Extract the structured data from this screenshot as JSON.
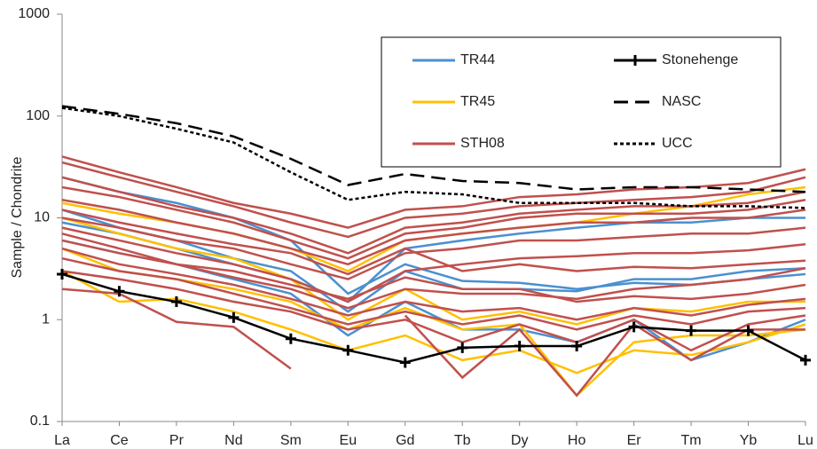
{
  "chart_data": {
    "type": "line",
    "y_label": "Sample / Chondrite",
    "y_scale": "log",
    "categories": [
      "La",
      "Ce",
      "Pr",
      "Nd",
      "Sm",
      "Eu",
      "Gd",
      "Tb",
      "Dy",
      "Ho",
      "Er",
      "Tm",
      "Yb",
      "Lu"
    ],
    "ylim": [
      0.1,
      1000
    ],
    "yticks": [
      0.1,
      1,
      10,
      100,
      1000
    ],
    "series": [
      {
        "name": "TR44",
        "color": "#4a90d0",
        "dash": "solid",
        "lines": [
          [
            25,
            18,
            14,
            10,
            6,
            1.8,
            3.5,
            2.4,
            2.3,
            2,
            2.3,
            2.2,
            2.5,
            2.8
          ],
          [
            12,
            8,
            6,
            4,
            3,
            1.2,
            3,
            2,
            2,
            1.9,
            2.5,
            2.5,
            3,
            3.2
          ],
          [
            9,
            7,
            5,
            3.5,
            2.5,
            1.5,
            5,
            6,
            7,
            8,
            9,
            9,
            10,
            10
          ],
          [
            6,
            4.5,
            3.5,
            2.5,
            1.8,
            0.7,
            1.5,
            0.8,
            0.8,
            0.6,
            1,
            0.4,
            0.6,
            1
          ]
        ]
      },
      {
        "name": "TR45",
        "color": "#ffc000",
        "dash": "solid",
        "lines": [
          [
            14,
            11,
            9,
            7,
            5,
            3,
            6,
            7,
            8,
            9,
            11,
            13,
            17,
            20
          ],
          [
            10,
            7,
            5,
            4,
            2.5,
            1,
            2,
            1,
            1.2,
            0.9,
            1.3,
            1.2,
            1.5,
            1.5
          ],
          [
            5,
            3,
            2.5,
            2,
            1.5,
            0.8,
            1.3,
            0.8,
            0.9,
            0.18,
            0.6,
            0.7,
            0.7,
            0.8
          ],
          [
            3,
            1.5,
            1.6,
            1.2,
            0.8,
            0.5,
            0.7,
            0.4,
            0.5,
            0.3,
            0.5,
            0.45,
            0.6,
            0.9
          ]
        ]
      },
      {
        "name": "STH08",
        "color": "#c0504d",
        "dash": "solid",
        "lines": [
          [
            40,
            28,
            20,
            14,
            11,
            8,
            12,
            13,
            16,
            17,
            19,
            20,
            22,
            30
          ],
          [
            35,
            25,
            18,
            13,
            9,
            6.5,
            10,
            11,
            13,
            14,
            15,
            16,
            18,
            25
          ],
          [
            25,
            18,
            13,
            10,
            7,
            4.5,
            8,
            9,
            11,
            12,
            13,
            13,
            14,
            18
          ],
          [
            20,
            16,
            12,
            9,
            6,
            4,
            7,
            8,
            10,
            11,
            11,
            11,
            12,
            15
          ],
          [
            15,
            12,
            9,
            7,
            5,
            3.5,
            6,
            7,
            8,
            9,
            9,
            10,
            10,
            12
          ],
          [
            12,
            9,
            7,
            5.5,
            4.5,
            2.8,
            5,
            3,
            3.5,
            3,
            3.3,
            3.2,
            3.5,
            3.8
          ],
          [
            10,
            8,
            6,
            5,
            3.5,
            2.5,
            4.5,
            5,
            6,
            6,
            6.5,
            7,
            7,
            8
          ],
          [
            8,
            6,
            4.5,
            3.5,
            2.5,
            1.5,
            3,
            3.5,
            4,
            4.2,
            4.5,
            4.5,
            4.8,
            5.5
          ],
          [
            7,
            5,
            3.5,
            3,
            2.2,
            1.6,
            2.6,
            2,
            2,
            1.5,
            1.7,
            1.6,
            1.8,
            2.2
          ],
          [
            6,
            4.5,
            3.5,
            2.6,
            2,
            1.3,
            2,
            1.8,
            1.8,
            1.6,
            2,
            2.2,
            2.5,
            3.2
          ],
          [
            5,
            3.5,
            2.8,
            2.2,
            1.6,
            1.1,
            1.5,
            1.2,
            1.3,
            1,
            1.3,
            1.1,
            1.4,
            1.6
          ],
          [
            4,
            3,
            2.5,
            1.8,
            1.3,
            0.9,
            1.2,
            0.9,
            1.1,
            0.8,
            1.1,
            0.9,
            1.2,
            1.3
          ],
          [
            3,
            2.5,
            2,
            1.5,
            1.2,
            0.8,
            1,
            0.6,
            0.9,
            0.6,
            1,
            0.5,
            0.9,
            1.1
          ],
          [
            2,
            1.8,
            0.95,
            0.85,
            0.33,
            null,
            1.1,
            0.27,
            0.8,
            0.18,
            0.9,
            0.4,
            0.8,
            0.8
          ]
        ]
      },
      {
        "name": "Stonehenge",
        "color": "#000000",
        "dash": "solid",
        "marker": "plus",
        "lines": [
          [
            2.8,
            1.9,
            1.5,
            1.05,
            0.65,
            0.5,
            0.38,
            0.53,
            0.55,
            0.55,
            0.85,
            0.78,
            0.78,
            0.4
          ]
        ]
      },
      {
        "name": "NASC",
        "color": "#000000",
        "dash": "long",
        "lines": [
          [
            125,
            105,
            85,
            63,
            38,
            21,
            27,
            23,
            22,
            19,
            20,
            20,
            19,
            18
          ]
        ]
      },
      {
        "name": "UCC",
        "color": "#000000",
        "dash": "short",
        "lines": [
          [
            120,
            100,
            75,
            55,
            28,
            15,
            18,
            17,
            14,
            14,
            14,
            13,
            13,
            12.5
          ]
        ]
      }
    ]
  }
}
